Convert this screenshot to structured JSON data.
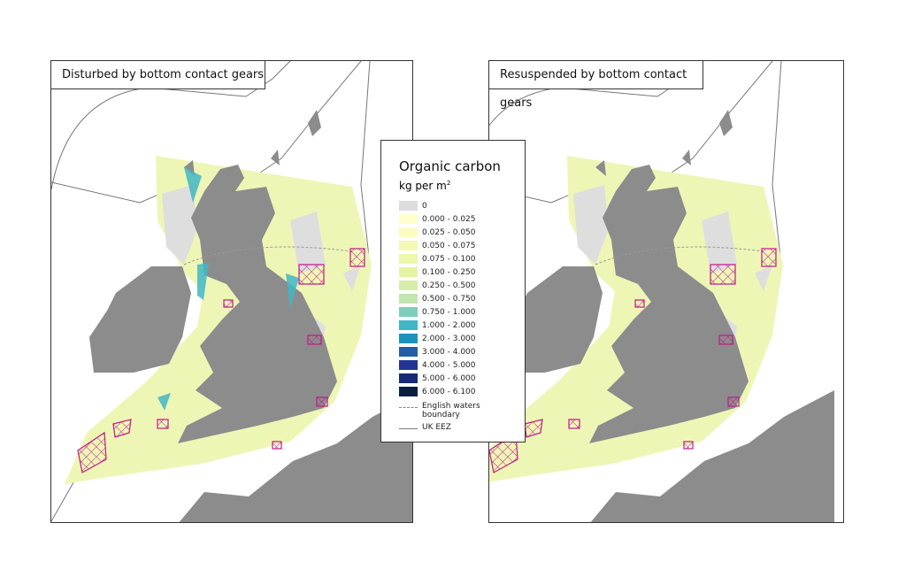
{
  "panels": [
    {
      "title": "Disturbed by bottom contact gears"
    },
    {
      "title": "Resuspended by bottom contact gears"
    }
  ],
  "legend": {
    "title": "Organic carbon",
    "unit_base": "kg per m",
    "unit_sup": "2",
    "classes": [
      {
        "label": "0",
        "color": "#dcdcdc"
      },
      {
        "label": "0.000 - 0.025",
        "color": "#ffffcc"
      },
      {
        "label": "0.025 - 0.050",
        "color": "#fbfcc3"
      },
      {
        "label": "0.050 - 0.075",
        "color": "#f4f9b8"
      },
      {
        "label": "0.075 - 0.100",
        "color": "#eef7ac"
      },
      {
        "label": "0.100 - 0.250",
        "color": "#e5f3a7"
      },
      {
        "label": "0.250 - 0.500",
        "color": "#d6eea9"
      },
      {
        "label": "0.500 - 0.750",
        "color": "#c2e6b1"
      },
      {
        "label": "0.750 - 1.000",
        "color": "#7ecdbb"
      },
      {
        "label": "1.000 - 2.000",
        "color": "#41b6c4"
      },
      {
        "label": "2.000 - 3.000",
        "color": "#1d91c0"
      },
      {
        "label": "3.000 - 4.000",
        "color": "#225ea8"
      },
      {
        "label": "4.000 - 5.000",
        "color": "#253494"
      },
      {
        "label": "5.000 - 6.000",
        "color": "#162a77"
      },
      {
        "label": "6.000 - 6.100",
        "color": "#081d3f"
      }
    ],
    "english_boundary": "English waters boundary",
    "uk_eez": "UK EEZ"
  },
  "colors": {
    "land": "#8c8c8c",
    "mpa": "#c0198a",
    "eez": "#777777"
  }
}
